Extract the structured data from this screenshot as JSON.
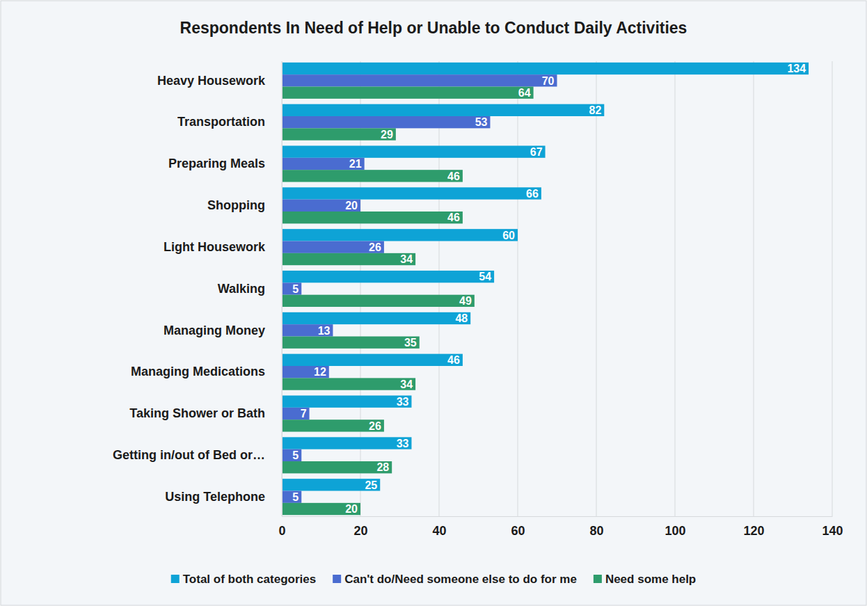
{
  "chart_data": {
    "type": "bar",
    "orientation": "horizontal",
    "title": "Respondents In Need of Help or Unable to Conduct Daily Activities",
    "categories": [
      "Heavy Housework",
      "Transportation",
      "Preparing Meals",
      "Shopping",
      "Light Housework",
      "Walking",
      "Managing Money",
      "Managing Medications",
      "Taking Shower or Bath",
      "Getting in/out of Bed or…",
      "Using Telephone"
    ],
    "series": [
      {
        "name": "Total of both categories",
        "color": "#0ea3d6",
        "values": [
          134,
          82,
          67,
          66,
          60,
          54,
          48,
          46,
          33,
          33,
          25
        ]
      },
      {
        "name": "Can't do/Need someone else to do for me",
        "color": "#4a6cd0",
        "values": [
          70,
          53,
          21,
          20,
          26,
          5,
          13,
          12,
          7,
          5,
          5
        ]
      },
      {
        "name": "Need some help",
        "color": "#2e9c6c",
        "values": [
          64,
          29,
          46,
          46,
          34,
          49,
          35,
          34,
          26,
          28,
          20
        ]
      }
    ],
    "xlim": [
      0,
      140
    ],
    "xticks": [
      0,
      20,
      40,
      60,
      80,
      100,
      120,
      140
    ],
    "grid": true,
    "legend": "bottom",
    "data_labels": true
  }
}
